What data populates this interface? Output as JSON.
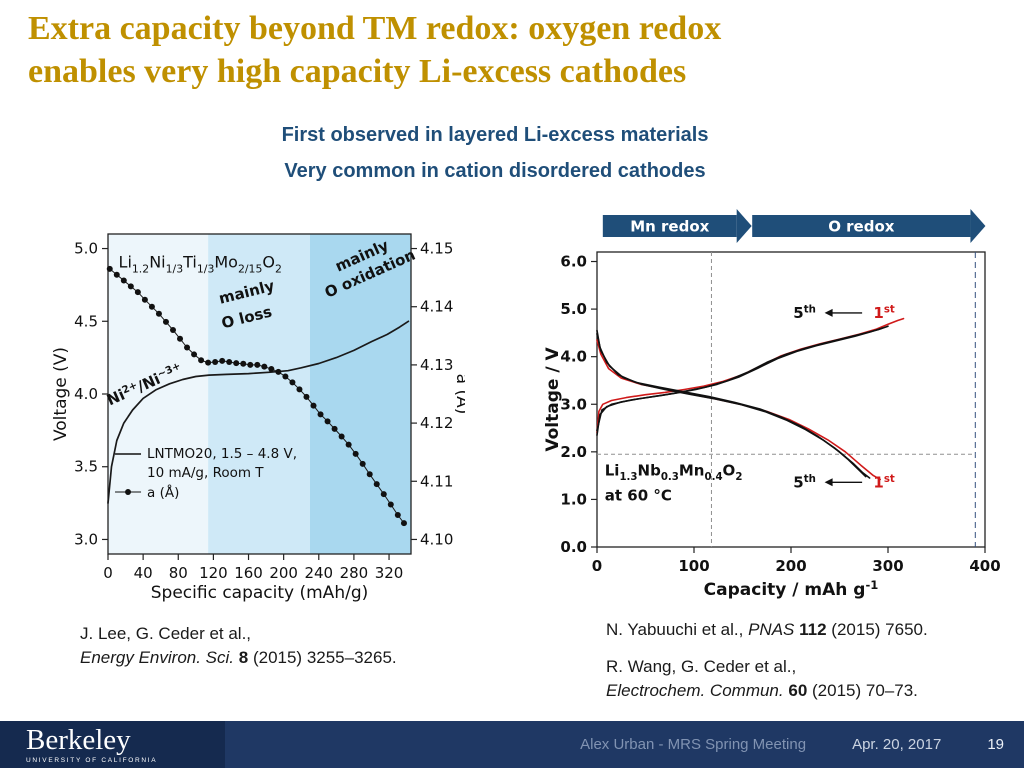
{
  "title": {
    "line1": "Extra capacity beyond TM redox: oxygen redox",
    "line2": "enables very high capacity Li-excess cathodes"
  },
  "subtitles": [
    "First observed in layered Li-excess materials",
    "Very common in cation disordered cathodes"
  ],
  "citations": {
    "left": {
      "line1": "J. Lee, G. Ceder et al.,",
      "journal": "Energy Environ. Sci.",
      "volume": "8",
      "post": "(2015) 3255–3265."
    },
    "right1": {
      "pre": "N. Yabuuchi et al.,",
      "journal": "PNAS",
      "volume": "112",
      "post": "(2015) 7650."
    },
    "right2": {
      "line1": "R. Wang, G. Ceder et al.,",
      "journal": "Electrochem. Commun.",
      "volume": "60",
      "post": "(2015) 70–73."
    }
  },
  "footer": {
    "logo_text": "Berkeley",
    "logo_subtext": "UNIVERSITY OF CALIFORNIA",
    "presenter": "Alex Urban - MRS Spring Meeting",
    "date": "Apr. 20, 2017",
    "page_number": "19"
  },
  "colors": {
    "title": "#BF9000",
    "subtitle": "#1F4E79",
    "footer_bar": "#1F3864",
    "footer_logo_bg": "#152A4F",
    "banner": "#1F4E79",
    "red_series": "#D01A1A",
    "black_series": "#111111"
  },
  "chart_data": [
    {
      "type": "line",
      "name": "left-voltage-lattice-plot",
      "xlabel": "Specific capacity (mAh/g)",
      "ylabel_left": "Voltage (V)",
      "ylabel_right": "a (Å)",
      "xlim": [
        0,
        345
      ],
      "ylim_left": [
        2.9,
        5.1
      ],
      "ylim_right": [
        4.0975,
        4.1525
      ],
      "xtick_vals": [
        0,
        40,
        80,
        120,
        160,
        200,
        240,
        280,
        320
      ],
      "xtick_labels": [
        "0",
        "40",
        "80",
        "120",
        "160",
        "200",
        "240",
        "280",
        "320"
      ],
      "ytick_left_vals": [
        3.0,
        3.5,
        4.0,
        4.5,
        5.0
      ],
      "ytick_left_labels": [
        "3.0",
        "3.5",
        "4.0",
        "4.5",
        "5.0"
      ],
      "ytick_right_vals": [
        4.1,
        4.11,
        4.12,
        4.13,
        4.14,
        4.15
      ],
      "ytick_right_labels": [
        "4.10",
        "4.11",
        "4.12",
        "4.13",
        "4.14",
        "4.15"
      ],
      "regions": [
        {
          "x0": 0,
          "x1": 114,
          "color": "#EDF6FB"
        },
        {
          "x0": 114,
          "x1": 230,
          "color": "#CFE9F7"
        },
        {
          "x0": 230,
          "x1": 345,
          "color": "#A9D8EF"
        }
      ],
      "series": [
        {
          "name": "voltage-curve",
          "axis": "left",
          "color": "#1a1a1a",
          "points": [
            [
              0,
              3.25
            ],
            [
              4,
              3.5
            ],
            [
              10,
              3.68
            ],
            [
              18,
              3.8
            ],
            [
              28,
              3.89
            ],
            [
              40,
              3.97
            ],
            [
              55,
              4.03
            ],
            [
              70,
              4.07
            ],
            [
              85,
              4.1
            ],
            [
              100,
              4.12
            ],
            [
              115,
              4.13
            ],
            [
              135,
              4.135
            ],
            [
              160,
              4.14
            ],
            [
              185,
              4.15
            ],
            [
              205,
              4.16
            ],
            [
              220,
              4.18
            ],
            [
              240,
              4.21
            ],
            [
              260,
              4.25
            ],
            [
              280,
              4.3
            ],
            [
              300,
              4.36
            ],
            [
              318,
              4.41
            ],
            [
              332,
              4.46
            ],
            [
              342,
              4.5
            ]
          ]
        },
        {
          "name": "lattice-parameter-a",
          "axis": "right",
          "color": "#1a1a1a",
          "marker": "dot",
          "points": [
            [
              2,
              4.1465
            ],
            [
              10,
              4.1455
            ],
            [
              18,
              4.1445
            ],
            [
              26,
              4.1435
            ],
            [
              34,
              4.1425
            ],
            [
              42,
              4.1412
            ],
            [
              50,
              4.14
            ],
            [
              58,
              4.1388
            ],
            [
              66,
              4.1374
            ],
            [
              74,
              4.136
            ],
            [
              82,
              4.1345
            ],
            [
              90,
              4.133
            ],
            [
              98,
              4.1318
            ],
            [
              106,
              4.1308
            ],
            [
              114,
              4.1304
            ],
            [
              122,
              4.1305
            ],
            [
              130,
              4.1307
            ],
            [
              138,
              4.1305
            ],
            [
              146,
              4.1303
            ],
            [
              154,
              4.1302
            ],
            [
              162,
              4.13
            ],
            [
              170,
              4.13
            ],
            [
              178,
              4.1297
            ],
            [
              186,
              4.1293
            ],
            [
              194,
              4.1288
            ],
            [
              202,
              4.128
            ],
            [
              210,
              4.127
            ],
            [
              218,
              4.1258
            ],
            [
              226,
              4.1245
            ],
            [
              234,
              4.123
            ],
            [
              242,
              4.1215
            ],
            [
              250,
              4.1203
            ],
            [
              258,
              4.119
            ],
            [
              266,
              4.1177
            ],
            [
              274,
              4.1163
            ],
            [
              282,
              4.1147
            ],
            [
              290,
              4.113
            ],
            [
              298,
              4.1112
            ],
            [
              306,
              4.1095
            ],
            [
              314,
              4.1078
            ],
            [
              322,
              4.106
            ],
            [
              330,
              4.1042
            ],
            [
              337,
              4.1028
            ]
          ]
        }
      ],
      "annotations": [
        {
          "text": "Li_{1.2}Ni_{1/3}Ti_{1/3}Mo_{2/15}O_{2}",
          "x": 12,
          "y": 4.87,
          "rot": 0,
          "size": 16,
          "bold": false
        },
        {
          "text": "Ni^{2+}/Ni^{~3+}",
          "x": 2,
          "y": 3.92,
          "rot": -24,
          "size": 15,
          "bold": true
        },
        {
          "text": "mainly",
          "x": 128,
          "y": 4.62,
          "rot": -14,
          "size": 15,
          "bold": true
        },
        {
          "text": "O loss",
          "x": 131,
          "y": 4.45,
          "rot": -14,
          "size": 15,
          "bold": true
        },
        {
          "text": "mainly",
          "x": 262,
          "y": 4.84,
          "rot": -24,
          "size": 15,
          "bold": true
        },
        {
          "text": "O oxidation",
          "x": 250,
          "y": 4.66,
          "rot": -24,
          "size": 15,
          "bold": true
        }
      ],
      "legend": {
        "x": 8,
        "y": 3.56,
        "line1": "LNTMO20, 1.5 – 4.8 V,",
        "line2": "10 mA/g, Room T",
        "line3": "a (Å)"
      }
    },
    {
      "type": "line",
      "name": "right-voltage-capacity-plot",
      "xlabel": "Capacity / mAh g^{-1}",
      "ylabel": "Voltage / V",
      "xlim": [
        0,
        400
      ],
      "ylim": [
        0,
        6.2
      ],
      "xtick_vals": [
        0,
        100,
        200,
        300,
        400
      ],
      "xtick_labels": [
        "0",
        "100",
        "200",
        "300",
        "400"
      ],
      "ytick_vals": [
        0,
        1,
        2,
        3,
        4,
        5,
        6
      ],
      "ytick_labels": [
        "0.0",
        "1.0",
        "2.0",
        "3.0",
        "4.0",
        "5.0",
        "6.0"
      ],
      "banners": [
        {
          "label": "Mn redox",
          "x0": 6,
          "x1": 144
        },
        {
          "label": "O redox",
          "x0": 160,
          "x1": 385
        }
      ],
      "ref_lines": {
        "vertical": [
          {
            "x": 118,
            "color": "#909090",
            "dash": "4 3"
          },
          {
            "x": 390,
            "color": "#35507E",
            "dash": "6 4"
          }
        ],
        "horizontal": [
          {
            "y": 1.95,
            "x0": 0,
            "x1": 390,
            "color": "#909090",
            "dash": "4 3"
          }
        ]
      },
      "series": [
        {
          "name": "charge-1st",
          "color": "#D01A1A",
          "points": [
            [
              0,
              2.4
            ],
            [
              2,
              2.85
            ],
            [
              6,
              3.0
            ],
            [
              15,
              3.08
            ],
            [
              30,
              3.14
            ],
            [
              50,
              3.2
            ],
            [
              70,
              3.25
            ],
            [
              90,
              3.31
            ],
            [
              110,
              3.38
            ],
            [
              130,
              3.48
            ],
            [
              150,
              3.62
            ],
            [
              170,
              3.82
            ],
            [
              190,
              4.02
            ],
            [
              210,
              4.16
            ],
            [
              230,
              4.27
            ],
            [
              250,
              4.37
            ],
            [
              270,
              4.47
            ],
            [
              288,
              4.58
            ],
            [
              300,
              4.68
            ],
            [
              310,
              4.76
            ],
            [
              316,
              4.8
            ]
          ]
        },
        {
          "name": "charge-5th-a",
          "color": "#111111",
          "points": [
            [
              0,
              2.35
            ],
            [
              3,
              2.78
            ],
            [
              10,
              2.95
            ],
            [
              25,
              3.05
            ],
            [
              45,
              3.12
            ],
            [
              68,
              3.19
            ],
            [
              90,
              3.27
            ],
            [
              112,
              3.36
            ],
            [
              134,
              3.49
            ],
            [
              155,
              3.67
            ],
            [
              175,
              3.88
            ],
            [
              195,
              4.05
            ],
            [
              215,
              4.18
            ],
            [
              235,
              4.29
            ],
            [
              255,
              4.39
            ],
            [
              275,
              4.49
            ],
            [
              290,
              4.57
            ],
            [
              300,
              4.64
            ]
          ]
        },
        {
          "name": "charge-5th-b",
          "color": "#111111",
          "points": [
            [
              0,
              2.45
            ],
            [
              5,
              2.88
            ],
            [
              15,
              3.0
            ],
            [
              35,
              3.09
            ],
            [
              58,
              3.16
            ],
            [
              80,
              3.23
            ],
            [
              102,
              3.31
            ],
            [
              124,
              3.42
            ],
            [
              146,
              3.57
            ],
            [
              166,
              3.76
            ],
            [
              186,
              3.96
            ],
            [
              206,
              4.11
            ],
            [
              226,
              4.23
            ],
            [
              246,
              4.33
            ],
            [
              266,
              4.43
            ],
            [
              282,
              4.52
            ],
            [
              294,
              4.6
            ]
          ]
        },
        {
          "name": "discharge-1st",
          "color": "#D01A1A",
          "points": [
            [
              0,
              4.35
            ],
            [
              4,
              4.05
            ],
            [
              12,
              3.75
            ],
            [
              25,
              3.55
            ],
            [
              45,
              3.42
            ],
            [
              70,
              3.32
            ],
            [
              95,
              3.22
            ],
            [
              120,
              3.12
            ],
            [
              148,
              3.0
            ],
            [
              175,
              2.85
            ],
            [
              198,
              2.68
            ],
            [
              218,
              2.48
            ],
            [
              238,
              2.25
            ],
            [
              256,
              2.0
            ],
            [
              272,
              1.72
            ],
            [
              285,
              1.5
            ],
            [
              292,
              1.42
            ]
          ]
        },
        {
          "name": "discharge-5th-a",
          "color": "#111111",
          "points": [
            [
              0,
              4.55
            ],
            [
              3,
              4.2
            ],
            [
              10,
              3.88
            ],
            [
              22,
              3.62
            ],
            [
              40,
              3.46
            ],
            [
              64,
              3.36
            ],
            [
              90,
              3.26
            ],
            [
              116,
              3.16
            ],
            [
              142,
              3.04
            ],
            [
              168,
              2.9
            ],
            [
              190,
              2.73
            ],
            [
              210,
              2.54
            ],
            [
              228,
              2.32
            ],
            [
              245,
              2.08
            ],
            [
              259,
              1.84
            ],
            [
              270,
              1.62
            ],
            [
              277,
              1.48
            ]
          ]
        },
        {
          "name": "discharge-5th-b",
          "color": "#111111",
          "points": [
            [
              0,
              4.48
            ],
            [
              4,
              4.12
            ],
            [
              13,
              3.8
            ],
            [
              27,
              3.56
            ],
            [
              46,
              3.42
            ],
            [
              70,
              3.31
            ],
            [
              96,
              3.21
            ],
            [
              122,
              3.11
            ],
            [
              149,
              2.99
            ],
            [
              174,
              2.84
            ],
            [
              196,
              2.66
            ],
            [
              215,
              2.47
            ],
            [
              233,
              2.25
            ],
            [
              250,
              2.0
            ],
            [
              264,
              1.76
            ],
            [
              274,
              1.56
            ],
            [
              281,
              1.45
            ]
          ]
        }
      ],
      "label_5": "5^{th}",
      "label_1": "1^{st}",
      "cycle_labels": [
        {
          "y": 4.92,
          "x5": 214,
          "x1": 296
        },
        {
          "y": 1.36,
          "x5": 214,
          "x1": 296
        }
      ],
      "annotations": [
        {
          "text": "Li_{1.3}Nb_{0.3}Mn_{0.4}O_{2}",
          "x": 8,
          "y": 1.5,
          "size": 15,
          "bold": true
        },
        {
          "text": "at 60 °C",
          "x": 8,
          "y": 0.98,
          "size": 15,
          "bold": true
        }
      ]
    }
  ]
}
